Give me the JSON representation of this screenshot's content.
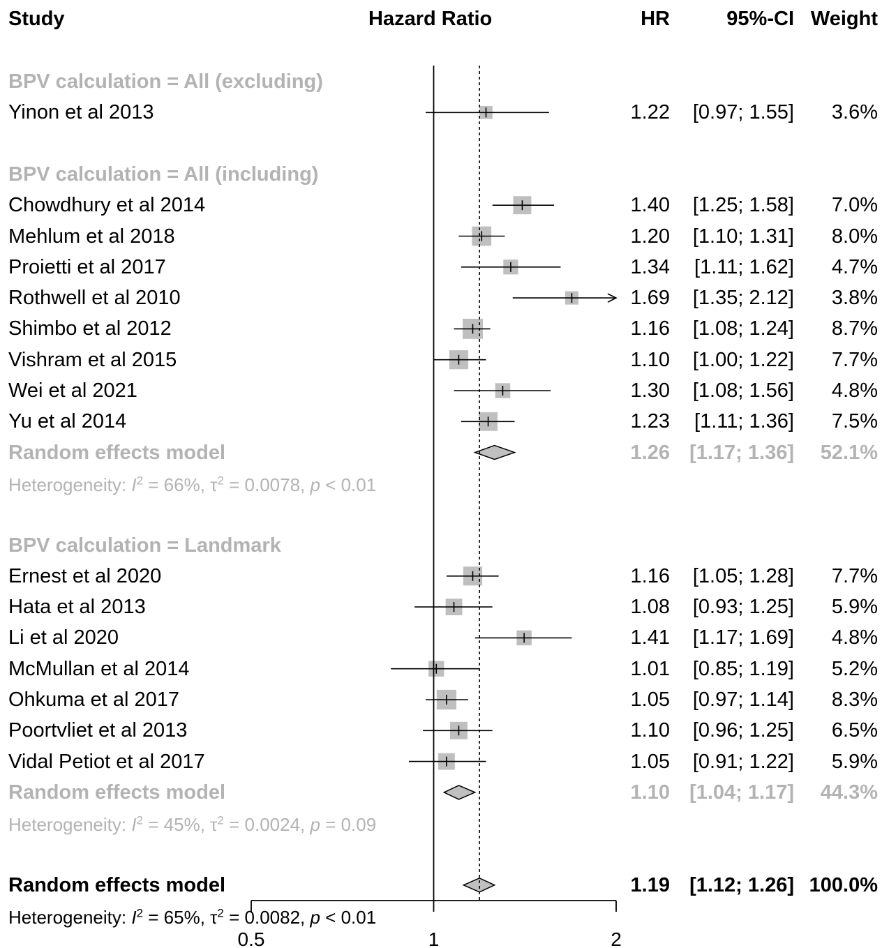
{
  "headers": {
    "study": "Study",
    "plot": "Hazard Ratio",
    "hr": "HR",
    "ci": "95%-CI",
    "weight": "Weight"
  },
  "chart_data": {
    "type": "forest",
    "x_scale": "log",
    "xlim": [
      0.5,
      2
    ],
    "ticks": [
      0.5,
      1,
      2
    ],
    "tick_labels": [
      "0.5",
      "1",
      "2"
    ],
    "null_value": 1,
    "overall_line": 1.19,
    "colors": {
      "square": "#bfbfbf",
      "diamond": "#c0c0c0",
      "subgroup_text": "#b3b3b3"
    },
    "rows": [
      {
        "kind": "group",
        "label": "BPV calculation = All (excluding)"
      },
      {
        "kind": "study",
        "label": "Yinon et al 2013",
        "hr": 1.22,
        "lo": 0.97,
        "hi": 1.55,
        "hr_txt": "1.22",
        "ci_txt": "[0.97; 1.55]",
        "w_txt": "3.6%",
        "w": 3.6
      },
      {
        "kind": "blank"
      },
      {
        "kind": "group",
        "label": "BPV calculation = All (including)"
      },
      {
        "kind": "study",
        "label": "Chowdhury et al 2014",
        "hr": 1.4,
        "lo": 1.25,
        "hi": 1.58,
        "hr_txt": "1.40",
        "ci_txt": "[1.25; 1.58]",
        "w_txt": "7.0%",
        "w": 7.0
      },
      {
        "kind": "study",
        "label": "Mehlum et al 2018",
        "hr": 1.2,
        "lo": 1.1,
        "hi": 1.31,
        "hr_txt": "1.20",
        "ci_txt": "[1.10; 1.31]",
        "w_txt": "8.0%",
        "w": 8.0
      },
      {
        "kind": "study",
        "label": "Proietti et al 2017",
        "hr": 1.34,
        "lo": 1.11,
        "hi": 1.62,
        "hr_txt": "1.34",
        "ci_txt": "[1.11; 1.62]",
        "w_txt": "4.7%",
        "w": 4.7
      },
      {
        "kind": "study",
        "label": "Rothwell et al 2010",
        "hr": 1.69,
        "lo": 1.35,
        "hi": 2.12,
        "hr_txt": "1.69",
        "ci_txt": "[1.35; 2.12]",
        "w_txt": "3.8%",
        "w": 3.8
      },
      {
        "kind": "study",
        "label": "Shimbo et al 2012",
        "hr": 1.16,
        "lo": 1.08,
        "hi": 1.24,
        "hr_txt": "1.16",
        "ci_txt": "[1.08; 1.24]",
        "w_txt": "8.7%",
        "w": 8.7
      },
      {
        "kind": "study",
        "label": "Vishram et al 2015",
        "hr": 1.1,
        "lo": 1.0,
        "hi": 1.22,
        "hr_txt": "1.10",
        "ci_txt": "[1.00; 1.22]",
        "w_txt": "7.7%",
        "w": 7.7
      },
      {
        "kind": "study",
        "label": "Wei et al 2021",
        "hr": 1.3,
        "lo": 1.08,
        "hi": 1.56,
        "hr_txt": "1.30",
        "ci_txt": "[1.08; 1.56]",
        "w_txt": "4.8%",
        "w": 4.8
      },
      {
        "kind": "study",
        "label": "Yu et al 2014",
        "hr": 1.23,
        "lo": 1.11,
        "hi": 1.36,
        "hr_txt": "1.23",
        "ci_txt": "[1.11; 1.36]",
        "w_txt": "7.5%",
        "w": 7.5
      },
      {
        "kind": "subtotal",
        "label": "Random effects model",
        "hr": 1.26,
        "lo": 1.17,
        "hi": 1.36,
        "hr_txt": "1.26",
        "ci_txt": "[1.17; 1.36]",
        "w_txt": "52.1%"
      },
      {
        "kind": "het",
        "pre": "Heterogeneity: ",
        "i2": "I",
        "sup": "2",
        "mid": " = 66%, τ",
        "sup2": "2",
        "mid2": " = 0.0078, ",
        "p": "p",
        "post": " < 0.01"
      },
      {
        "kind": "blank"
      },
      {
        "kind": "group",
        "label": "BPV calculation = Landmark"
      },
      {
        "kind": "study",
        "label": "Ernest et al 2020",
        "hr": 1.16,
        "lo": 1.05,
        "hi": 1.28,
        "hr_txt": "1.16",
        "ci_txt": "[1.05; 1.28]",
        "w_txt": "7.7%",
        "w": 7.7
      },
      {
        "kind": "study",
        "label": "Hata et al 2013",
        "hr": 1.08,
        "lo": 0.93,
        "hi": 1.25,
        "hr_txt": "1.08",
        "ci_txt": "[0.93; 1.25]",
        "w_txt": "5.9%",
        "w": 5.9
      },
      {
        "kind": "study",
        "label": "Li et al 2020",
        "hr": 1.41,
        "lo": 1.17,
        "hi": 1.69,
        "hr_txt": "1.41",
        "ci_txt": "[1.17; 1.69]",
        "w_txt": "4.8%",
        "w": 4.8
      },
      {
        "kind": "study",
        "label": "McMullan et al 2014",
        "hr": 1.01,
        "lo": 0.85,
        "hi": 1.19,
        "hr_txt": "1.01",
        "ci_txt": "[0.85; 1.19]",
        "w_txt": "5.2%",
        "w": 5.2
      },
      {
        "kind": "study",
        "label": "Ohkuma et al 2017",
        "hr": 1.05,
        "lo": 0.97,
        "hi": 1.14,
        "hr_txt": "1.05",
        "ci_txt": "[0.97; 1.14]",
        "w_txt": "8.3%",
        "w": 8.3
      },
      {
        "kind": "study",
        "label": "Poortvliet et al 2013",
        "hr": 1.1,
        "lo": 0.96,
        "hi": 1.25,
        "hr_txt": "1.10",
        "ci_txt": "[0.96; 1.25]",
        "w_txt": "6.5%",
        "w": 6.5
      },
      {
        "kind": "study",
        "label": "Vidal Petiot et al 2017",
        "hr": 1.05,
        "lo": 0.91,
        "hi": 1.22,
        "hr_txt": "1.05",
        "ci_txt": "[0.91; 1.22]",
        "w_txt": "5.9%",
        "w": 5.9
      },
      {
        "kind": "subtotal",
        "label": "Random effects model",
        "hr": 1.1,
        "lo": 1.04,
        "hi": 1.17,
        "hr_txt": "1.10",
        "ci_txt": "[1.04; 1.17]",
        "w_txt": "44.3%"
      },
      {
        "kind": "het",
        "pre": "Heterogeneity: ",
        "i2": "I",
        "sup": "2",
        "mid": " = 45%, τ",
        "sup2": "2",
        "mid2": " = 0.0024, ",
        "p": "p",
        "post": " = 0.09"
      },
      {
        "kind": "blank"
      },
      {
        "kind": "overall",
        "label": "Random effects model",
        "hr": 1.19,
        "lo": 1.12,
        "hi": 1.26,
        "hr_txt": "1.19",
        "ci_txt": "[1.12; 1.26]",
        "w_txt": "100.0%"
      },
      {
        "kind": "het_overall",
        "pre": "Heterogeneity: ",
        "i2": "I",
        "sup": "2",
        "mid": " = 65%, τ",
        "sup2": "2",
        "mid2": " = 0.0082, ",
        "p": "p",
        "post": " < 0.01"
      }
    ]
  }
}
